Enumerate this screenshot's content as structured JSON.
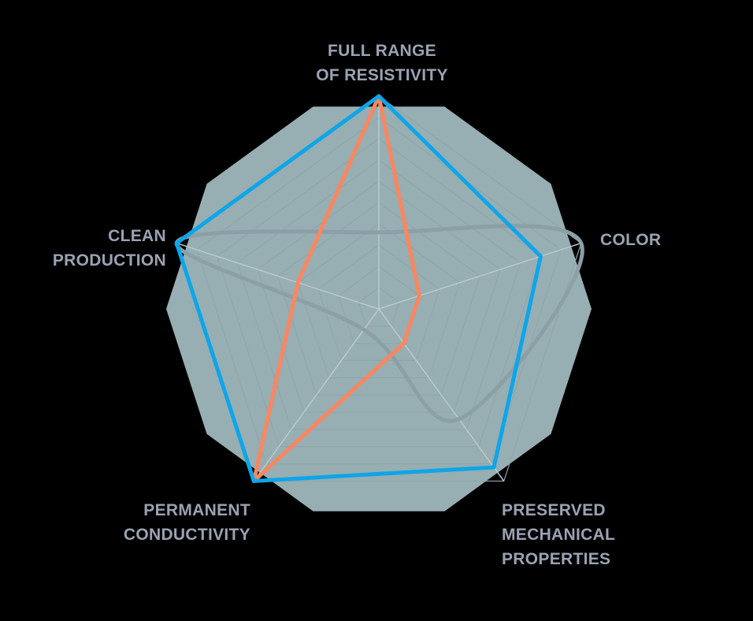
{
  "chart_data": {
    "type": "radar",
    "title": "",
    "axes": [
      "FULL RANGE OF RESISTIVITY",
      "COLOR",
      "PRESERVED MECHANICAL PROPERTIES",
      "PERMANENT CONDUCTIVITY",
      "CLEAN PRODUCTION"
    ],
    "axis_label_lines": [
      [
        "FULL RANGE",
        "OF RESISTIVITY"
      ],
      [
        "COLOR"
      ],
      [
        "PRESERVED",
        "MECHANICAL",
        "PROPERTIES"
      ],
      [
        "PERMANENT",
        "CONDUCTIVITY"
      ],
      [
        "CLEAN",
        "PRODUCTION"
      ]
    ],
    "range": [
      0,
      1
    ],
    "grid": {
      "rings": 10,
      "shape": "pentagon",
      "on": true
    },
    "series": [
      {
        "name": "series-blue",
        "color": "#0ea5e9",
        "values": [
          1.0,
          0.8,
          0.92,
          1.0,
          1.0
        ],
        "smooth": false
      },
      {
        "name": "series-orange",
        "color": "#fb865f",
        "values": [
          1.0,
          0.2,
          0.2,
          1.0,
          0.4
        ],
        "smooth": false
      },
      {
        "name": "series-grey",
        "color": "#8b9fa7",
        "values": [
          0.36,
          1.0,
          0.64,
          0.12,
          1.0
        ],
        "smooth": true
      }
    ],
    "legend": null
  },
  "colors": {
    "background": "#000000",
    "plot_fill": "#97aeb2",
    "grid_line": "#8fa6ab",
    "spoke_line": "#b8cacd",
    "label_text": "#9aa2b3"
  },
  "labels": {
    "top": [
      "FULL RANGE",
      "OF RESISTIVITY"
    ],
    "color": [
      "COLOR"
    ],
    "preserved": [
      "PRESERVED",
      "MECHANICAL",
      "PROPERTIES"
    ],
    "permanent": [
      "PERMANENT",
      "CONDUCTIVITY"
    ],
    "clean": [
      "CLEAN",
      "PRODUCTION"
    ]
  }
}
